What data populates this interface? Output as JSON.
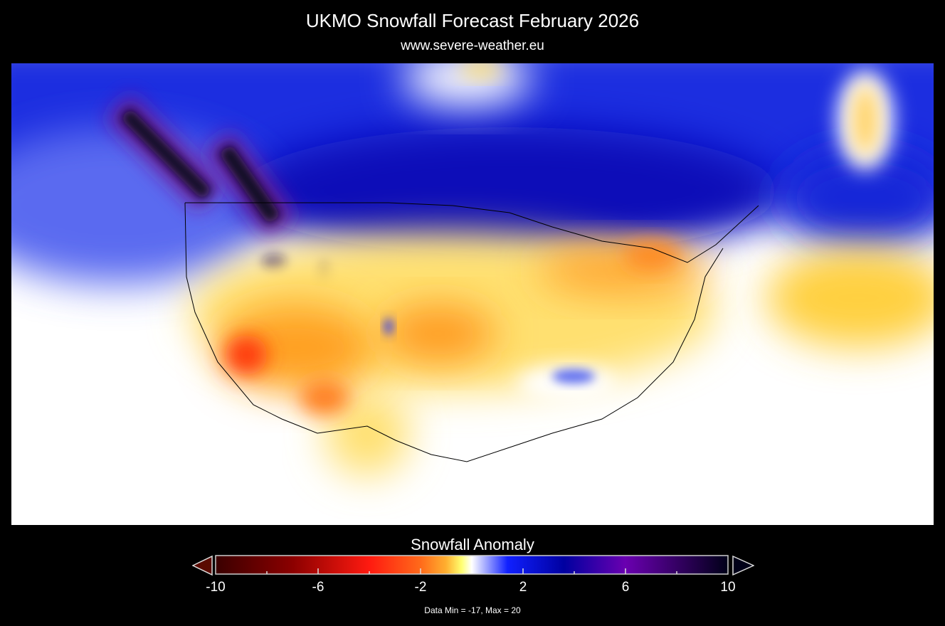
{
  "header": {
    "title": "UKMO Snowfall Forecast  February 2026",
    "subtitle": "www.severe-weather.eu"
  },
  "map": {
    "region": "North America (contiguous US and southern Canada)",
    "field": "snowfall anomaly"
  },
  "legend": {
    "title": "Snowfall Anomaly",
    "range": [
      -10,
      10
    ],
    "tick_labels": [
      "-10",
      "-6",
      "-2",
      "2",
      "6",
      "10"
    ],
    "minor_ticks": [
      -8,
      -4,
      4,
      8
    ],
    "colors": [
      "#3a0000",
      "#8b0000",
      "#ff1a10",
      "#ff6a1a",
      "#ffb030",
      "#ffff70",
      "#ffffff",
      "#1020ff",
      "#0000a0",
      "#6a00b0",
      "#000018"
    ],
    "extend_low_color": "#5a0a00",
    "extend_high_color": "#000018",
    "data_min_max": "Data Min = -17, Max = 20"
  }
}
